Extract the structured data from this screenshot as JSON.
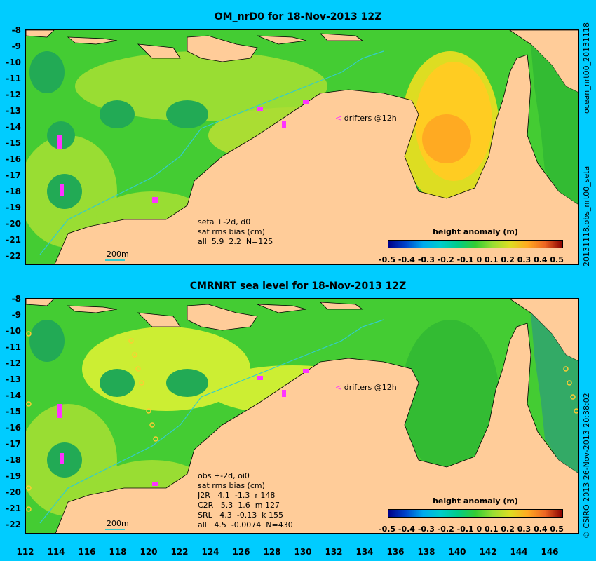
{
  "top": {
    "title": "OM_nrD0 for 18-Nov-2013 12Z",
    "side_label": "ocean_nrt00_20131118",
    "side_label2": "20131118.obs_nrt00_seta",
    "stats": [
      "seta +-2d, d0",
      "sat rms bias (cm)",
      "all  5.9  2.2  N=125"
    ],
    "drifters": "drifters @12h",
    "scale": "200m",
    "colorbar_title": "height anomaly (m)"
  },
  "bottom": {
    "title": "CMRNRT sea level  for 18-Nov-2013 12Z",
    "side_label": "© CSIRO 2013  26-Nov-2013 20:38:02",
    "stats": [
      "obs +-2d, oi0",
      "sat rms bias (cm)",
      "J2R   4.1  -1.3  r 148",
      "C2R   5.3  1.6  m 127",
      "SRL   4.3  -0.13  k 155",
      "all   4.5  -0.0074  N=430"
    ],
    "drifters": "drifters @12h",
    "scale": "200m",
    "colorbar_title": "height anomaly (m)"
  },
  "y_ticks": [
    "-8",
    "-9",
    "-10",
    "-11",
    "-12",
    "-13",
    "-14",
    "-15",
    "-16",
    "-17",
    "-18",
    "-19",
    "-20",
    "-21",
    "-22"
  ],
  "x_ticks": [
    "112",
    "114",
    "116",
    "118",
    "120",
    "122",
    "124",
    "126",
    "128",
    "130",
    "132",
    "134",
    "136",
    "138",
    "140",
    "142",
    "144",
    "146"
  ],
  "colorbar_ticks": [
    "-0.5",
    "-0.4",
    "-0.3",
    "-0.2",
    "-0.1",
    "0",
    "0.1",
    "0.2",
    "0.3",
    "0.4",
    "0.5"
  ],
  "colors": {
    "background": "#00ccff",
    "land": "#ffcc99",
    "ocean_green": "#33cc33",
    "ocean_light": "#99dd33",
    "warm": "#ffaa22",
    "drifter": "#ff33ff"
  }
}
